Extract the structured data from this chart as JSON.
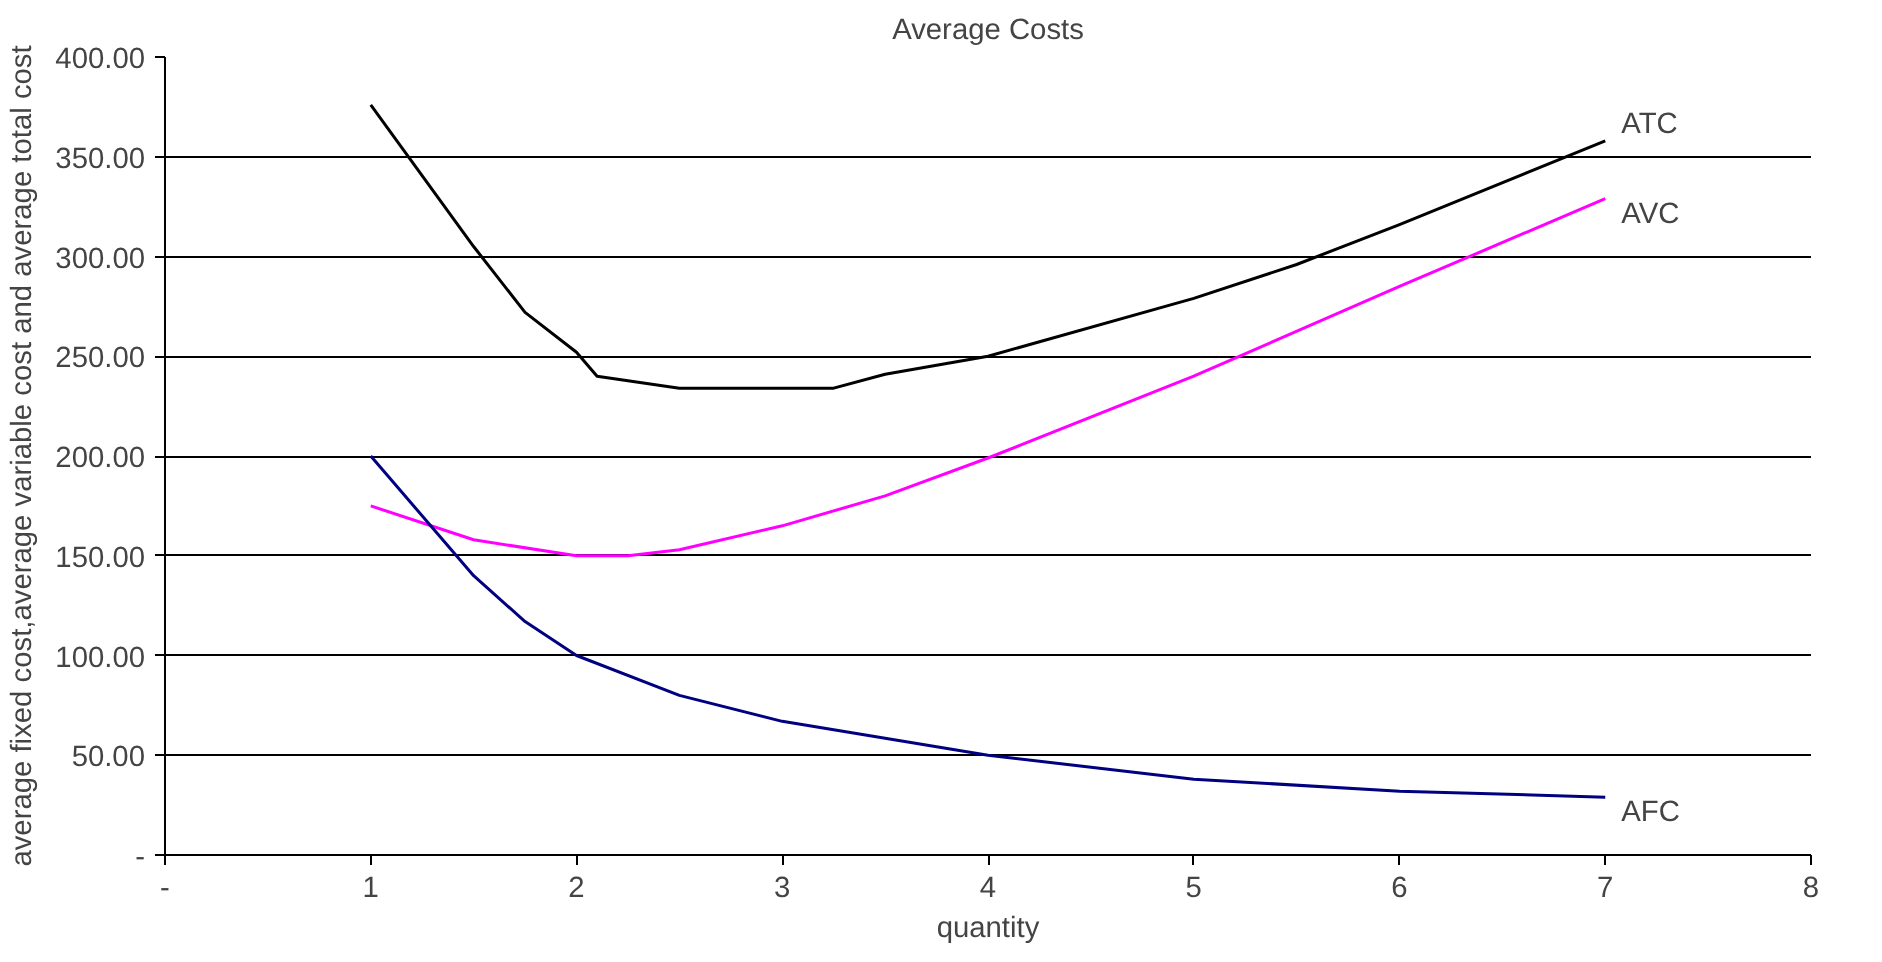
{
  "chart_data": {
    "type": "line",
    "title": "Average Costs",
    "xlabel": "quantity",
    "ylabel": "average fixed cost,average variable cost and average total cost",
    "xlim": [
      0,
      8
    ],
    "ylim": [
      0,
      400
    ],
    "xticks": [
      {
        "value": 0,
        "label": "-"
      },
      1,
      2,
      3,
      4,
      5,
      6,
      7,
      8
    ],
    "yticks": [
      {
        "value": 0,
        "label": "-"
      },
      {
        "value": 50,
        "label": "50.00"
      },
      {
        "value": 100,
        "label": "100.00"
      },
      {
        "value": 150,
        "label": "150.00"
      },
      {
        "value": 200,
        "label": "200.00"
      },
      {
        "value": 250,
        "label": "250.00"
      },
      {
        "value": 300,
        "label": "300.00"
      },
      {
        "value": 350,
        "label": "350.00"
      },
      {
        "value": 400,
        "label": "400.00"
      }
    ],
    "grid": "y",
    "legend": false,
    "marker": "none",
    "line_style": "solid",
    "series": [
      {
        "name": "ATC",
        "color": "#000000",
        "x": [
          1,
          1.5,
          1.75,
          2,
          2.1,
          2.5,
          3,
          3.25,
          3.5,
          4,
          5,
          5.5,
          6,
          7
        ],
        "values": [
          376,
          305,
          272,
          252,
          240,
          234,
          234,
          234,
          241,
          250,
          279,
          296,
          316,
          358
        ]
      },
      {
        "name": "AVC",
        "color": "#ff00ff",
        "x": [
          1,
          1.5,
          2,
          2.25,
          2.5,
          3,
          3.5,
          4,
          5,
          6,
          7
        ],
        "values": [
          175,
          158,
          150,
          150,
          153,
          165,
          180,
          199,
          240,
          285,
          329
        ]
      },
      {
        "name": "AFC",
        "color": "#000080",
        "x": [
          1,
          1.5,
          1.75,
          2,
          2.5,
          3,
          4,
          5,
          6,
          7
        ],
        "values": [
          200,
          140,
          117,
          100,
          80,
          67,
          50,
          38,
          32,
          29
        ]
      }
    ]
  }
}
